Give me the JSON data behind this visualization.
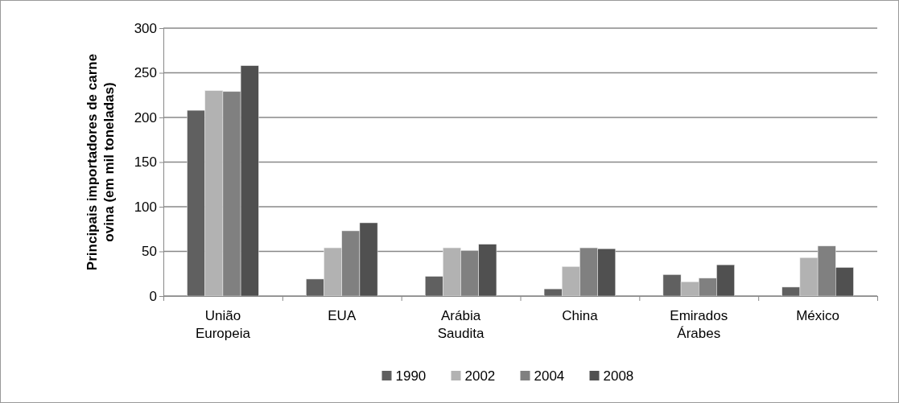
{
  "chart_data": {
    "type": "bar",
    "ylabel": "Principais importadores de carne ovina (em mil toneladas)",
    "categories": [
      "União Europeia",
      "EUA",
      "Arábia Saudita",
      "China",
      "Emirados Árabes",
      "México"
    ],
    "series": [
      {
        "name": "1990",
        "color": "#606060",
        "values": [
          208,
          19,
          22,
          8,
          24,
          10
        ]
      },
      {
        "name": "2002",
        "color": "#b2b2b2",
        "values": [
          230,
          54,
          54,
          33,
          16,
          43
        ]
      },
      {
        "name": "2004",
        "color": "#808080",
        "values": [
          229,
          73,
          51,
          54,
          20,
          56
        ]
      },
      {
        "name": "2008",
        "color": "#505050",
        "values": [
          258,
          82,
          58,
          53,
          35,
          32
        ]
      }
    ],
    "ylim": [
      0,
      300
    ],
    "yticks": [
      0,
      50,
      100,
      150,
      200,
      250,
      300
    ],
    "grid": "y",
    "legend": "bottom"
  }
}
